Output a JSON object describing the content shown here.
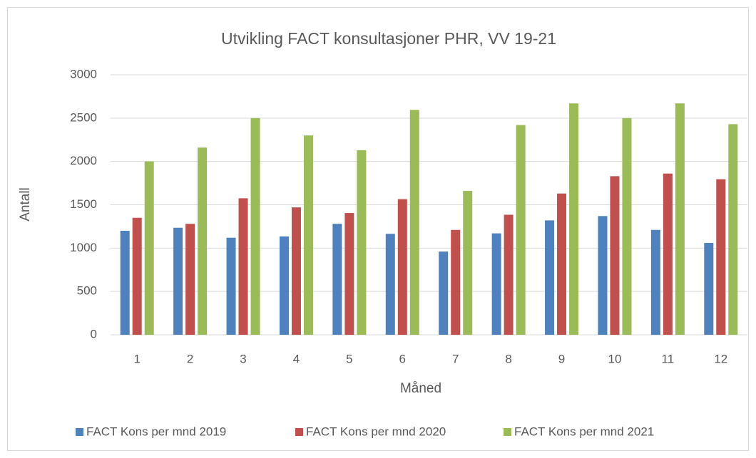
{
  "chart_data": {
    "type": "bar",
    "title": "Utvikling FACT konsultasjoner PHR, VV 19-21",
    "x_label": "Måned",
    "y_label": "Antall",
    "categories": [
      "1",
      "2",
      "3",
      "4",
      "5",
      "6",
      "7",
      "8",
      "9",
      "10",
      "11",
      "12"
    ],
    "series": [
      {
        "name": "FACT Kons per mnd 2019",
        "color": "#4f81bd",
        "values": [
          1200,
          1235,
          1120,
          1135,
          1280,
          1165,
          960,
          1170,
          1320,
          1370,
          1210,
          1060
        ]
      },
      {
        "name": "FACT Kons per mnd 2020",
        "color": "#c0504d",
        "values": [
          1350,
          1280,
          1575,
          1470,
          1405,
          1565,
          1210,
          1385,
          1630,
          1830,
          1860,
          1795
        ]
      },
      {
        "name": "FACT Kons per mnd 2021",
        "color": "#9bbb59",
        "values": [
          2000,
          2160,
          2500,
          2300,
          2130,
          2595,
          1660,
          2420,
          2670,
          2500,
          2670,
          2430
        ]
      }
    ],
    "ylim": [
      0,
      3000
    ],
    "yticks": [
      0,
      500,
      1000,
      1500,
      2000,
      2500,
      3000
    ],
    "grid": true,
    "legend": "bottom"
  }
}
